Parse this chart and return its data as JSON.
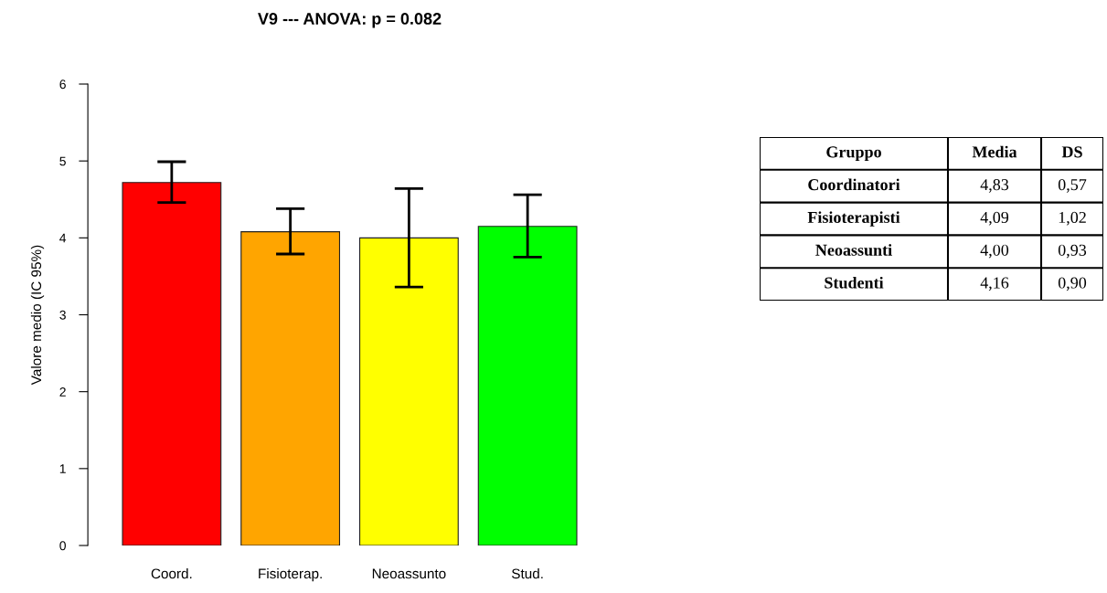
{
  "chart_data": [
    {
      "type": "bar",
      "title": "V9 --- ANOVA: p = 0.082",
      "ylabel": "Valore medio (IC 95%)",
      "categories": [
        "Coord.",
        "Fisioterap.",
        "Neoassunto",
        "Stud."
      ],
      "values": [
        4.72,
        4.08,
        4.0,
        4.15
      ],
      "colors": [
        "#ff0000",
        "#ffa500",
        "#ffff00",
        "#00ff00"
      ],
      "errors": [
        [
          4.46,
          4.99
        ],
        [
          3.79,
          4.38
        ],
        [
          3.36,
          4.64
        ],
        [
          3.75,
          4.56
        ]
      ],
      "ylim": [
        0,
        6
      ],
      "yticks": [
        0,
        1,
        2,
        3,
        4,
        5,
        6
      ],
      "grid": false
    },
    {
      "type": "other",
      "categories": [
        "Gruppo",
        "Media",
        "DS"
      ],
      "y_categories": [
        "Coordinatori",
        "Fisioterapisti",
        "Neoassunti",
        "Studenti"
      ],
      "cell_labels": [
        [
          "4,83",
          "0,57"
        ],
        [
          "4,09",
          "1,02"
        ],
        [
          "4,00",
          "0,93"
        ],
        [
          "4,16",
          "0,90"
        ]
      ]
    }
  ]
}
